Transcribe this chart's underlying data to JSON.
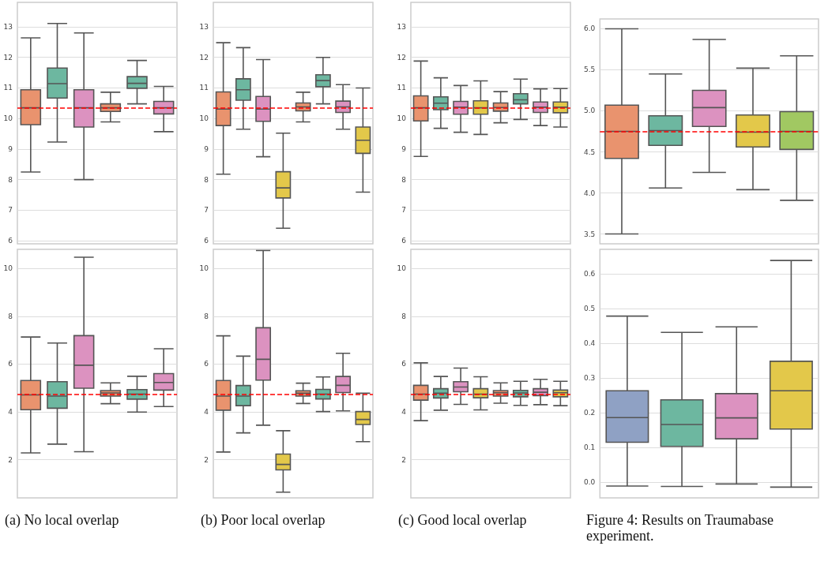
{
  "chart_data": [
    {
      "type": "box",
      "categories": [
        null,
        null,
        null,
        null,
        null,
        null
      ],
      "colors": [
        "#e9936e",
        "#6db7a0",
        "#dc92c0",
        "#e9936e",
        "#6db7a0",
        "#dc92c0"
      ],
      "boxes": [
        {
          "low": 8.25,
          "q1": 9.8,
          "median": 10.35,
          "q3": 10.94,
          "high": 12.64
        },
        {
          "low": 9.23,
          "q1": 10.67,
          "median": 11.14,
          "q3": 11.65,
          "high": 13.11
        },
        {
          "low": 8.0,
          "q1": 9.72,
          "median": 10.35,
          "q3": 10.94,
          "high": 12.8
        },
        {
          "low": 9.89,
          "q1": 10.23,
          "median": 10.35,
          "q3": 10.48,
          "high": 10.86
        },
        {
          "low": 10.48,
          "q1": 10.99,
          "median": 11.15,
          "q3": 11.37,
          "high": 11.9
        },
        {
          "low": 9.57,
          "q1": 10.15,
          "median": 10.35,
          "q3": 10.56,
          "high": 11.05
        }
      ],
      "ylim": [
        5.9,
        13.8
      ],
      "yticks": [
        6,
        7,
        8,
        9,
        10,
        11,
        12,
        13
      ],
      "grid": "y",
      "tick_labels": "y",
      "ref_lines": [
        {
          "axis": "y",
          "value": 10.35,
          "color": "#ff0000",
          "line_style": "dashed"
        }
      ]
    },
    {
      "type": "box",
      "categories": [
        null,
        null,
        null,
        null,
        null,
        null,
        null,
        null
      ],
      "colors": [
        "#e9936e",
        "#6db7a0",
        "#dc92c0",
        "#e3c84a",
        "#e9936e",
        "#6db7a0",
        "#dc92c0",
        "#e3c84a"
      ],
      "boxes": [
        {
          "low": 8.18,
          "q1": 9.77,
          "median": 10.31,
          "q3": 10.87,
          "high": 12.48
        },
        {
          "low": 9.65,
          "q1": 10.6,
          "median": 10.94,
          "q3": 11.3,
          "high": 12.32
        },
        {
          "low": 8.75,
          "q1": 9.91,
          "median": 10.31,
          "q3": 10.72,
          "high": 11.93
        },
        {
          "low": 6.41,
          "q1": 7.4,
          "median": 7.73,
          "q3": 8.26,
          "high": 9.52
        },
        {
          "low": 9.89,
          "q1": 10.25,
          "median": 10.38,
          "q3": 10.51,
          "high": 10.86
        },
        {
          "low": 10.48,
          "q1": 11.04,
          "median": 11.24,
          "q3": 11.43,
          "high": 12.0
        },
        {
          "low": 9.65,
          "q1": 10.2,
          "median": 10.38,
          "q3": 10.57,
          "high": 11.11
        },
        {
          "low": 7.59,
          "q1": 8.86,
          "median": 9.29,
          "q3": 9.72,
          "high": 11.0
        }
      ],
      "ylim": [
        5.9,
        13.8
      ],
      "yticks": [
        6,
        7,
        8,
        9,
        10,
        11,
        12,
        13
      ],
      "grid": "y",
      "tick_labels": "y",
      "ref_lines": [
        {
          "axis": "y",
          "value": 10.35,
          "color": "#ff0000",
          "line_style": "dashed"
        }
      ]
    },
    {
      "type": "box",
      "categories": [
        null,
        null,
        null,
        null,
        null,
        null,
        null,
        null
      ],
      "colors": [
        "#e9936e",
        "#6db7a0",
        "#dc92c0",
        "#e3c84a",
        "#e9936e",
        "#6db7a0",
        "#dc92c0",
        "#e3c84a"
      ],
      "boxes": [
        {
          "low": 8.76,
          "q1": 9.92,
          "median": 10.35,
          "q3": 10.74,
          "high": 11.88
        },
        {
          "low": 9.68,
          "q1": 10.29,
          "median": 10.5,
          "q3": 10.71,
          "high": 11.33
        },
        {
          "low": 9.55,
          "q1": 10.14,
          "median": 10.37,
          "q3": 10.56,
          "high": 11.08
        },
        {
          "low": 9.48,
          "q1": 10.14,
          "median": 10.35,
          "q3": 10.58,
          "high": 11.23
        },
        {
          "low": 9.86,
          "q1": 10.24,
          "median": 10.36,
          "q3": 10.51,
          "high": 10.88
        },
        {
          "low": 9.97,
          "q1": 10.48,
          "median": 10.61,
          "q3": 10.81,
          "high": 11.29
        },
        {
          "low": 9.77,
          "q1": 10.2,
          "median": 10.37,
          "q3": 10.54,
          "high": 10.97
        },
        {
          "low": 9.72,
          "q1": 10.19,
          "median": 10.37,
          "q3": 10.54,
          "high": 10.98
        }
      ],
      "ylim": [
        5.9,
        13.8
      ],
      "yticks": [
        6,
        7,
        8,
        9,
        10,
        11,
        12,
        13
      ],
      "grid": "y",
      "tick_labels": "y",
      "ref_lines": [
        {
          "axis": "y",
          "value": 10.35,
          "color": "#ff0000",
          "line_style": "dashed"
        }
      ]
    },
    {
      "type": "box",
      "categories": [
        null,
        null,
        null,
        null,
        null
      ],
      "colors": [
        "#e9936e",
        "#6db7a0",
        "#dc92c0",
        "#e3c84a",
        "#a1c862"
      ],
      "boxes": [
        {
          "low": 3.5,
          "q1": 4.42,
          "median": 4.75,
          "q3": 5.07,
          "high": 6.0
        },
        {
          "low": 4.06,
          "q1": 4.58,
          "median": 4.76,
          "q3": 4.94,
          "high": 5.45
        },
        {
          "low": 4.25,
          "q1": 4.81,
          "median": 5.04,
          "q3": 5.25,
          "high": 5.87
        },
        {
          "low": 4.04,
          "q1": 4.56,
          "median": 4.74,
          "q3": 4.95,
          "high": 5.52
        },
        {
          "low": 3.91,
          "q1": 4.53,
          "median": 4.75,
          "q3": 4.99,
          "high": 5.67
        }
      ],
      "ylim": [
        3.38,
        6.12
      ],
      "yticks": [
        {
          "value": 3.5,
          "label": "3.5"
        },
        {
          "value": 4,
          "label": "4.0"
        },
        {
          "value": 4.5,
          "label": "4.5"
        },
        {
          "value": 5,
          "label": "5.0"
        },
        {
          "value": 5.5,
          "label": "5.5"
        },
        {
          "value": 6,
          "label": "6.0"
        }
      ],
      "grid": "y",
      "tick_labels": "y",
      "ref_lines": [
        {
          "axis": "y",
          "value": 4.75,
          "color": "#ff0000",
          "line_style": "dashed"
        }
      ]
    },
    {
      "type": "box",
      "categories": [
        null,
        null,
        null,
        null,
        null,
        null
      ],
      "colors": [
        "#e9936e",
        "#6db7a0",
        "#dc92c0",
        "#e9936e",
        "#6db7a0",
        "#dc92c0"
      ],
      "boxes": [
        {
          "low": 2.28,
          "q1": 4.09,
          "median": 4.71,
          "q3": 5.31,
          "high": 7.13
        },
        {
          "low": 2.65,
          "q1": 4.15,
          "median": 4.66,
          "q3": 5.26,
          "high": 6.88
        },
        {
          "low": 2.33,
          "q1": 4.99,
          "median": 5.95,
          "q3": 7.19,
          "high": 10.47
        },
        {
          "low": 4.34,
          "q1": 4.66,
          "median": 4.79,
          "q3": 4.89,
          "high": 5.21
        },
        {
          "low": 3.99,
          "q1": 4.53,
          "median": 4.74,
          "q3": 4.93,
          "high": 5.49
        },
        {
          "low": 4.22,
          "q1": 4.91,
          "median": 5.23,
          "q3": 5.6,
          "high": 6.64
        }
      ],
      "ylim": [
        0.4,
        10.8
      ],
      "yticks": [
        2,
        4,
        6,
        8,
        10
      ],
      "grid": "y",
      "tick_labels": "y",
      "ref_lines": [
        {
          "axis": "y",
          "value": 4.73,
          "color": "#ff0000",
          "line_style": "dashed"
        }
      ],
      "annotations": [
        "(a) No local overlap"
      ]
    },
    {
      "type": "box",
      "categories": [
        null,
        null,
        null,
        null,
        null,
        null,
        null,
        null
      ],
      "colors": [
        "#e9936e",
        "#6db7a0",
        "#dc92c0",
        "#e3c84a",
        "#e9936e",
        "#6db7a0",
        "#dc92c0",
        "#e3c84a"
      ],
      "boxes": [
        {
          "low": 2.32,
          "q1": 4.07,
          "median": 4.66,
          "q3": 5.31,
          "high": 7.18
        },
        {
          "low": 3.12,
          "q1": 4.26,
          "median": 4.66,
          "q3": 5.1,
          "high": 6.33
        },
        {
          "low": 3.44,
          "q1": 5.33,
          "median": 6.2,
          "q3": 7.52,
          "high": 10.75
        },
        {
          "low": 0.64,
          "q1": 1.57,
          "median": 1.8,
          "q3": 2.23,
          "high": 3.21
        },
        {
          "low": 4.35,
          "q1": 4.66,
          "median": 4.78,
          "q3": 4.88,
          "high": 5.2
        },
        {
          "low": 4.01,
          "q1": 4.54,
          "median": 4.74,
          "q3": 4.94,
          "high": 5.46
        },
        {
          "low": 4.04,
          "q1": 4.81,
          "median": 5.11,
          "q3": 5.48,
          "high": 6.45
        },
        {
          "low": 2.75,
          "q1": 3.47,
          "median": 3.68,
          "q3": 4.01,
          "high": 4.78
        }
      ],
      "ylim": [
        0.4,
        10.8
      ],
      "yticks": [
        2,
        4,
        6,
        8,
        10
      ],
      "grid": "y",
      "tick_labels": "y",
      "ref_lines": [
        {
          "axis": "y",
          "value": 4.73,
          "color": "#ff0000",
          "line_style": "dashed"
        }
      ],
      "annotations": [
        "(b) Poor local overlap"
      ]
    },
    {
      "type": "box",
      "categories": [
        null,
        null,
        null,
        null,
        null,
        null,
        null,
        null
      ],
      "colors": [
        "#e9936e",
        "#6db7a0",
        "#dc92c0",
        "#e3c84a",
        "#e9936e",
        "#6db7a0",
        "#dc92c0",
        "#e3c84a"
      ],
      "boxes": [
        {
          "low": 3.63,
          "q1": 4.49,
          "median": 4.74,
          "q3": 5.11,
          "high": 6.05
        },
        {
          "low": 4.07,
          "q1": 4.58,
          "median": 4.78,
          "q3": 4.97,
          "high": 5.48
        },
        {
          "low": 4.31,
          "q1": 4.84,
          "median": 5.04,
          "q3": 5.26,
          "high": 5.83
        },
        {
          "low": 4.08,
          "q1": 4.59,
          "median": 4.74,
          "q3": 4.97,
          "high": 5.47
        },
        {
          "low": 4.36,
          "q1": 4.66,
          "median": 4.8,
          "q3": 4.89,
          "high": 5.21
        },
        {
          "low": 4.27,
          "q1": 4.63,
          "median": 4.79,
          "q3": 4.9,
          "high": 5.28
        },
        {
          "low": 4.3,
          "q1": 4.68,
          "median": 4.82,
          "q3": 4.97,
          "high": 5.36
        },
        {
          "low": 4.26,
          "q1": 4.63,
          "median": 4.8,
          "q3": 4.91,
          "high": 5.28
        }
      ],
      "ylim": [
        0.4,
        10.8
      ],
      "yticks": [
        2,
        4,
        6,
        8,
        10
      ],
      "grid": "y",
      "tick_labels": "y",
      "ref_lines": [
        {
          "axis": "y",
          "value": 4.73,
          "color": "#ff0000",
          "line_style": "dashed"
        }
      ],
      "annotations": [
        "(c) Good local overlap"
      ]
    },
    {
      "type": "box",
      "categories": [
        null,
        null,
        null,
        null
      ],
      "colors": [
        "#8fa1c4",
        "#6db7a0",
        "#dc92c0",
        "#e3c84a"
      ],
      "boxes": [
        {
          "low": -0.011,
          "q1": 0.115,
          "median": 0.186,
          "q3": 0.263,
          "high": 0.478
        },
        {
          "low": -0.012,
          "q1": 0.103,
          "median": 0.166,
          "q3": 0.237,
          "high": 0.431
        },
        {
          "low": -0.005,
          "q1": 0.125,
          "median": 0.185,
          "q3": 0.255,
          "high": 0.447
        },
        {
          "low": -0.014,
          "q1": 0.153,
          "median": 0.263,
          "q3": 0.348,
          "high": 0.638
        }
      ],
      "ylim": [
        -0.045,
        0.67
      ],
      "yticks": [
        {
          "value": 0,
          "label": "0.0"
        },
        {
          "value": 0.1,
          "label": "0.1"
        },
        {
          "value": 0.2,
          "label": "0.2"
        },
        {
          "value": 0.3,
          "label": "0.3"
        },
        {
          "value": 0.4,
          "label": "0.4"
        },
        {
          "value": 0.5,
          "label": "0.5"
        },
        {
          "value": 0.6,
          "label": "0.6"
        }
      ],
      "grid": "y",
      "tick_labels": "y",
      "annotations": [
        "Figure 4: Results on Traumabase experiment."
      ]
    }
  ]
}
